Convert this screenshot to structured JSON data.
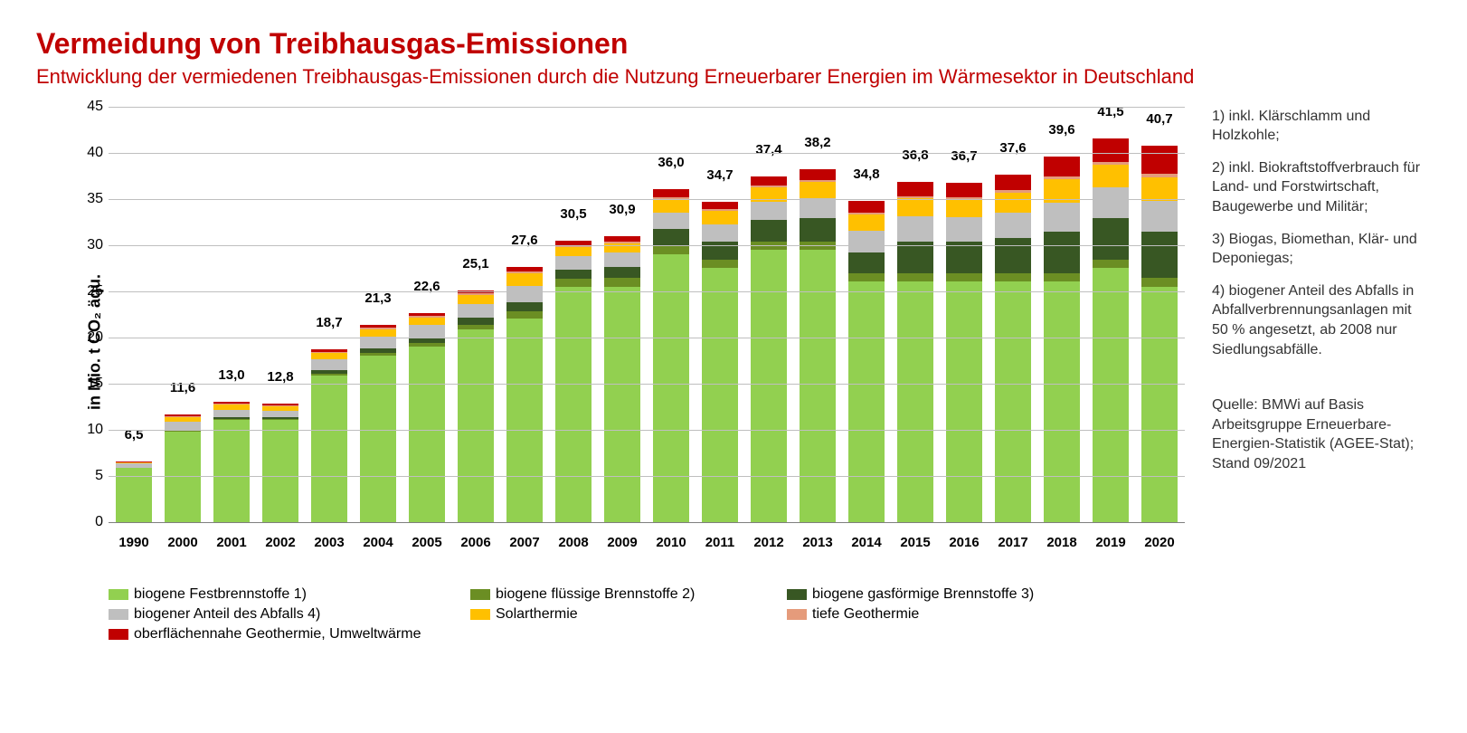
{
  "title": "Vermeidung von Treibhausgas-Emissionen",
  "subtitle": "Entwicklung der vermiedenen Treibhausgas-Emissionen durch die Nutzung Erneuerbarer Energien im Wärmesektor in Deutschland",
  "y_axis_label": "in Mio. t CO₂ äqu.",
  "chart": {
    "type": "stacked-bar",
    "y_min": 0,
    "y_max": 45,
    "y_tick_step": 5,
    "y_ticks": [
      0,
      5,
      10,
      15,
      20,
      25,
      30,
      35,
      40,
      45
    ],
    "grid_color": "#bfbfbf",
    "axis_color": "#7f7f7f",
    "background": "#ffffff",
    "bar_width_ratio": 0.82,
    "label_fontsize": 15,
    "tick_fontsize": 16,
    "title_color": "#c00000",
    "series": [
      {
        "key": "festbrennstoffe",
        "label": "biogene Festbrennstoffe 1)",
        "color": "#92d050"
      },
      {
        "key": "fluessig",
        "label": "biogene flüssige Brennstoffe 2)",
        "color": "#6b8e23"
      },
      {
        "key": "gasfoermig",
        "label": "biogene gasförmige Brennstoffe 3)",
        "color": "#385723"
      },
      {
        "key": "abfall",
        "label": "biogener Anteil des Abfalls 4)",
        "color": "#bfbfbf"
      },
      {
        "key": "solarthermie",
        "label": "Solarthermie",
        "color": "#ffc000"
      },
      {
        "key": "tiefe_geo",
        "label": "tiefe Geothermie",
        "color": "#e59b7b"
      },
      {
        "key": "oberflaechen_geo",
        "label": "oberflächennahe Geothermie, Umweltwärme",
        "color": "#c00000"
      }
    ],
    "categories": [
      "1990",
      "2000",
      "2001",
      "2002",
      "2003",
      "2004",
      "2005",
      "2006",
      "2007",
      "2008",
      "2009",
      "2010",
      "2011",
      "2012",
      "2013",
      "2014",
      "2015",
      "2016",
      "2017",
      "2018",
      "2019",
      "2020"
    ],
    "totals": [
      "6,5",
      "11,6",
      "13,0",
      "12,8",
      "18,7",
      "21,3",
      "22,6",
      "25,1",
      "27,6",
      "30,5",
      "30,9",
      "36,0",
      "34,7",
      "37,4",
      "38,2",
      "34,8",
      "36,8",
      "36,7",
      "37,6",
      "39,6",
      "41,5",
      "40,7"
    ],
    "data": {
      "festbrennstoffe": [
        5.8,
        9.8,
        11.0,
        11.0,
        15.8,
        18.0,
        19.0,
        20.8,
        22.0,
        25.5,
        25.5,
        29.0,
        27.5,
        29.5,
        29.5,
        26.0,
        26.0,
        26.0,
        26.0,
        26.0,
        27.5,
        25.5
      ],
      "fluessig": [
        0.0,
        0.1,
        0.1,
        0.1,
        0.2,
        0.3,
        0.4,
        0.5,
        0.8,
        0.8,
        0.9,
        0.9,
        0.9,
        0.9,
        0.9,
        0.9,
        0.9,
        0.9,
        0.9,
        0.9,
        0.9,
        0.9
      ],
      "gasfoermig": [
        0.0,
        0.1,
        0.2,
        0.2,
        0.4,
        0.5,
        0.6,
        0.8,
        1.0,
        1.0,
        1.2,
        1.8,
        2.0,
        2.3,
        2.5,
        2.3,
        3.5,
        3.5,
        3.8,
        4.5,
        4.5,
        5.0
      ],
      "abfall": [
        0.5,
        0.8,
        0.8,
        0.7,
        1.2,
        1.3,
        1.3,
        1.5,
        1.8,
        1.5,
        1.6,
        1.8,
        1.8,
        2.0,
        2.2,
        2.3,
        2.7,
        2.6,
        2.8,
        3.2,
        3.3,
        3.4
      ],
      "solarthermie": [
        0.1,
        0.5,
        0.6,
        0.5,
        0.7,
        0.7,
        0.8,
        1.0,
        1.3,
        1.0,
        1.0,
        1.5,
        1.5,
        1.5,
        1.7,
        1.8,
        2.0,
        2.0,
        2.2,
        2.5,
        2.5,
        2.5
      ],
      "tiefe_geo": [
        0.0,
        0.1,
        0.1,
        0.1,
        0.1,
        0.2,
        0.2,
        0.2,
        0.2,
        0.2,
        0.2,
        0.2,
        0.2,
        0.2,
        0.2,
        0.2,
        0.2,
        0.2,
        0.2,
        0.3,
        0.3,
        0.4
      ],
      "oberflaechen_geo": [
        0.1,
        0.2,
        0.2,
        0.2,
        0.3,
        0.3,
        0.3,
        0.3,
        0.5,
        0.5,
        0.5,
        0.8,
        0.8,
        1.0,
        1.2,
        1.3,
        1.5,
        1.5,
        1.7,
        2.2,
        2.5,
        3.0
      ]
    }
  },
  "footnotes": [
    "1) inkl. Klärschlamm und Holzkohle;",
    "2) inkl. Biokraftstoffverbrauch für Land- und Forstwirtschaft, Baugewerbe und Militär;",
    "3) Biogas, Biomethan, Klär- und Deponiegas;",
    "4) biogener Anteil des Abfalls in Abfallverbrennungsanlagen mit 50 % angesetzt, ab 2008 nur Siedlungsabfälle."
  ],
  "source": "Quelle: BMWi auf Basis Arbeitsgruppe Erneuerbare-Energien-Statistik (AGEE-Stat); Stand 09/2021"
}
